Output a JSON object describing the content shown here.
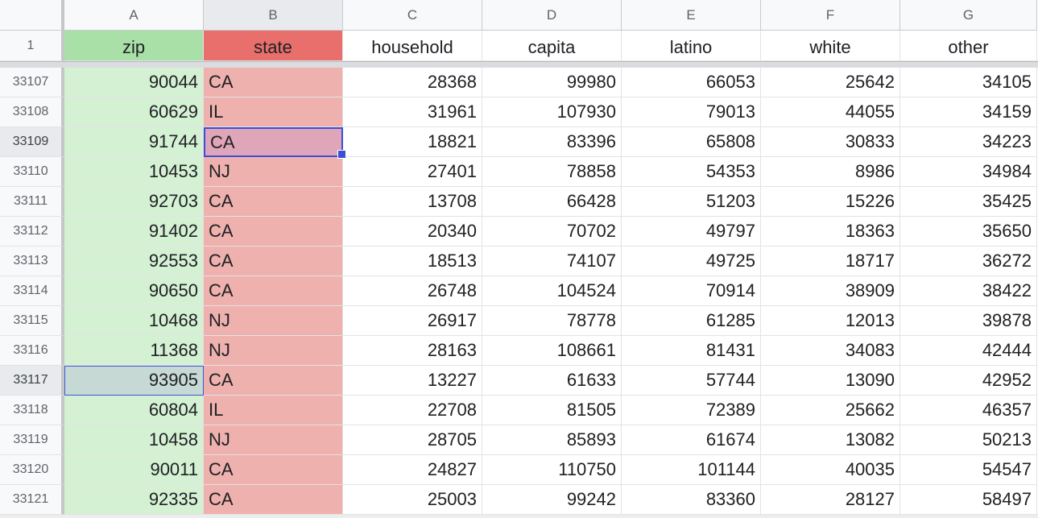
{
  "columns": [
    "A",
    "B",
    "C",
    "D",
    "E",
    "F",
    "G"
  ],
  "header_row": {
    "row_number": "1",
    "cells": [
      "zip",
      "state",
      "household",
      "capita",
      "latino",
      "white",
      "other"
    ]
  },
  "selection": {
    "active_cell": "B33109",
    "highlighted_cell": "A33117"
  },
  "colors": {
    "zip_header": "#a8e0a8",
    "state_header": "#e86f6b",
    "zip_fill": "#d4f1d4",
    "state_fill": "#eeb1ae",
    "selection_border": "#3b4fd6"
  },
  "rows": [
    {
      "n": "33107",
      "zip": "90044",
      "state": "CA",
      "household": "28368",
      "capita": "99980",
      "latino": "66053",
      "white": "25642",
      "other": "34105"
    },
    {
      "n": "33108",
      "zip": "60629",
      "state": "IL",
      "household": "31961",
      "capita": "107930",
      "latino": "79013",
      "white": "44055",
      "other": "34159"
    },
    {
      "n": "33109",
      "zip": "91744",
      "state": "CA",
      "household": "18821",
      "capita": "83396",
      "latino": "65808",
      "white": "30833",
      "other": "34223"
    },
    {
      "n": "33110",
      "zip": "10453",
      "state": "NJ",
      "household": "27401",
      "capita": "78858",
      "latino": "54353",
      "white": "8986",
      "other": "34984"
    },
    {
      "n": "33111",
      "zip": "92703",
      "state": "CA",
      "household": "13708",
      "capita": "66428",
      "latino": "51203",
      "white": "15226",
      "other": "35425"
    },
    {
      "n": "33112",
      "zip": "91402",
      "state": "CA",
      "household": "20340",
      "capita": "70702",
      "latino": "49797",
      "white": "18363",
      "other": "35650"
    },
    {
      "n": "33113",
      "zip": "92553",
      "state": "CA",
      "household": "18513",
      "capita": "74107",
      "latino": "49725",
      "white": "18717",
      "other": "36272"
    },
    {
      "n": "33114",
      "zip": "90650",
      "state": "CA",
      "household": "26748",
      "capita": "104524",
      "latino": "70914",
      "white": "38909",
      "other": "38422"
    },
    {
      "n": "33115",
      "zip": "10468",
      "state": "NJ",
      "household": "26917",
      "capita": "78778",
      "latino": "61285",
      "white": "12013",
      "other": "39878"
    },
    {
      "n": "33116",
      "zip": "11368",
      "state": "NJ",
      "household": "28163",
      "capita": "108661",
      "latino": "81431",
      "white": "34083",
      "other": "42444"
    },
    {
      "n": "33117",
      "zip": "93905",
      "state": "CA",
      "household": "13227",
      "capita": "61633",
      "latino": "57744",
      "white": "13090",
      "other": "42952"
    },
    {
      "n": "33118",
      "zip": "60804",
      "state": "IL",
      "household": "22708",
      "capita": "81505",
      "latino": "72389",
      "white": "25662",
      "other": "46357"
    },
    {
      "n": "33119",
      "zip": "10458",
      "state": "NJ",
      "household": "28705",
      "capita": "85893",
      "latino": "61674",
      "white": "13082",
      "other": "50213"
    },
    {
      "n": "33120",
      "zip": "90011",
      "state": "CA",
      "household": "24827",
      "capita": "110750",
      "latino": "101144",
      "white": "40035",
      "other": "54547"
    },
    {
      "n": "33121",
      "zip": "92335",
      "state": "CA",
      "household": "25003",
      "capita": "99242",
      "latino": "83360",
      "white": "28127",
      "other": "58497"
    }
  ]
}
